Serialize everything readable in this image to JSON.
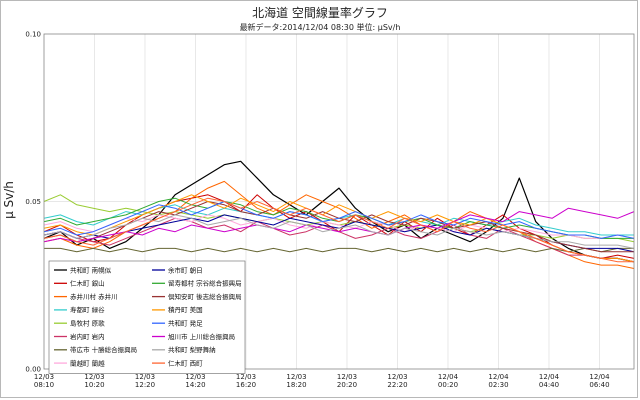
{
  "chart_data": {
    "type": "line",
    "title": "北海道 空間線量率グラフ",
    "subtitle": "最新データ:2014/12/04 08:30 単位: μSv/h",
    "ylabel": "μ Sv/h",
    "xlabel": "",
    "ylim": [
      0,
      0.1
    ],
    "y_ticks": [
      "0.00",
      "0.05",
      "0.10"
    ],
    "y_tick_values": [
      0,
      0.05,
      0.1
    ],
    "grid": true,
    "legend_position": "bottom-left",
    "x_ticks": [
      {
        "date": "12/03",
        "time": "08:10"
      },
      {
        "date": "12/03",
        "time": "10:20"
      },
      {
        "date": "12/03",
        "time": "12:20"
      },
      {
        "date": "12/03",
        "time": "14:20"
      },
      {
        "date": "12/03",
        "time": "16:20"
      },
      {
        "date": "12/03",
        "time": "18:20"
      },
      {
        "date": "12/03",
        "time": "20:20"
      },
      {
        "date": "12/03",
        "time": "22:20"
      },
      {
        "date": "12/04",
        "time": "00:20"
      },
      {
        "date": "12/04",
        "time": "02:30"
      },
      {
        "date": "12/04",
        "time": "04:40"
      },
      {
        "date": "12/04",
        "time": "06:40"
      }
    ],
    "series": [
      {
        "name": "共和町 南幌似",
        "color": "#000000",
        "values": [
          0.039,
          0.041,
          0.037,
          0.039,
          0.036,
          0.038,
          0.042,
          0.046,
          0.052,
          0.055,
          0.058,
          0.061,
          0.062,
          0.057,
          0.052,
          0.049,
          0.046,
          0.05,
          0.054,
          0.048,
          0.044,
          0.041,
          0.043,
          0.039,
          0.042,
          0.04,
          0.038,
          0.041,
          0.045,
          0.057,
          0.044,
          0.039,
          0.036,
          0.034,
          0.033,
          0.033,
          0.032
        ]
      },
      {
        "name": "仁木町 銀山",
        "color": "#cc0000",
        "values": [
          0.041,
          0.043,
          0.04,
          0.038,
          0.039,
          0.043,
          0.046,
          0.048,
          0.05,
          0.051,
          0.052,
          0.05,
          0.047,
          0.052,
          0.048,
          0.045,
          0.047,
          0.044,
          0.041,
          0.046,
          0.043,
          0.04,
          0.044,
          0.041,
          0.045,
          0.042,
          0.04,
          0.043,
          0.046,
          0.042,
          0.04,
          0.037,
          0.035,
          0.034,
          0.033,
          0.034,
          0.033
        ]
      },
      {
        "name": "赤井川村 赤井川",
        "color": "#ff6600",
        "values": [
          0.038,
          0.039,
          0.037,
          0.036,
          0.038,
          0.041,
          0.043,
          0.045,
          0.047,
          0.051,
          0.054,
          0.056,
          0.052,
          0.048,
          0.046,
          0.049,
          0.052,
          0.05,
          0.048,
          0.045,
          0.042,
          0.044,
          0.046,
          0.043,
          0.041,
          0.044,
          0.047,
          0.045,
          0.043,
          0.041,
          0.038,
          0.036,
          0.034,
          0.032,
          0.031,
          0.031,
          0.03
        ]
      },
      {
        "name": "寿都町 緑谷",
        "color": "#33cccc",
        "values": [
          0.045,
          0.046,
          0.044,
          0.043,
          0.045,
          0.047,
          0.046,
          0.048,
          0.049,
          0.047,
          0.046,
          0.048,
          0.047,
          0.046,
          0.045,
          0.047,
          0.046,
          0.044,
          0.045,
          0.046,
          0.044,
          0.043,
          0.045,
          0.044,
          0.043,
          0.045,
          0.044,
          0.043,
          0.044,
          0.045,
          0.043,
          0.042,
          0.041,
          0.041,
          0.04,
          0.04,
          0.04
        ]
      },
      {
        "name": "島牧村 原歌",
        "color": "#99cc33",
        "values": [
          0.05,
          0.052,
          0.049,
          0.048,
          0.047,
          0.048,
          0.047,
          0.046,
          0.047,
          0.046,
          0.045,
          0.046,
          0.045,
          0.044,
          0.045,
          0.044,
          0.043,
          0.044,
          0.043,
          0.044,
          0.043,
          0.042,
          0.043,
          0.042,
          0.043,
          0.042,
          0.041,
          0.042,
          0.041,
          0.04,
          0.04,
          0.039,
          0.04,
          0.039,
          0.039,
          0.039,
          0.038
        ]
      },
      {
        "name": "岩内町 岩内",
        "color": "#cc3366",
        "values": [
          0.04,
          0.041,
          0.039,
          0.038,
          0.037,
          0.039,
          0.041,
          0.043,
          0.045,
          0.044,
          0.042,
          0.043,
          0.041,
          0.044,
          0.042,
          0.04,
          0.041,
          0.043,
          0.041,
          0.039,
          0.04,
          0.042,
          0.04,
          0.039,
          0.041,
          0.043,
          0.04,
          0.039,
          0.042,
          0.04,
          0.038,
          0.036,
          0.034,
          0.034,
          0.033,
          0.033,
          0.032
        ]
      },
      {
        "name": "帯広市 十勝総合振興局",
        "color": "#666633",
        "values": [
          0.036,
          0.036,
          0.035,
          0.036,
          0.035,
          0.036,
          0.035,
          0.036,
          0.036,
          0.035,
          0.036,
          0.035,
          0.036,
          0.035,
          0.036,
          0.035,
          0.036,
          0.035,
          0.036,
          0.036,
          0.035,
          0.036,
          0.035,
          0.036,
          0.035,
          0.036,
          0.035,
          0.036,
          0.035,
          0.036,
          0.035,
          0.036,
          0.035,
          0.036,
          0.035,
          0.036,
          0.036
        ]
      },
      {
        "name": "蘭越町 蘭越",
        "color": "#ffaadd",
        "values": [
          0.043,
          0.044,
          0.042,
          0.041,
          0.043,
          0.045,
          0.044,
          0.046,
          0.045,
          0.044,
          0.046,
          0.045,
          0.043,
          0.044,
          0.045,
          0.043,
          0.042,
          0.044,
          0.043,
          0.042,
          0.044,
          0.043,
          0.041,
          0.043,
          0.042,
          0.041,
          0.043,
          0.042,
          0.041,
          0.042,
          0.041,
          0.04,
          0.04,
          0.039,
          0.039,
          0.04,
          0.039
        ]
      },
      {
        "name": "余市町 朝日",
        "color": "#000099",
        "values": [
          0.04,
          0.041,
          0.039,
          0.04,
          0.039,
          0.041,
          0.042,
          0.043,
          0.044,
          0.045,
          0.044,
          0.046,
          0.045,
          0.044,
          0.043,
          0.045,
          0.044,
          0.043,
          0.042,
          0.044,
          0.043,
          0.042,
          0.041,
          0.042,
          0.043,
          0.041,
          0.04,
          0.042,
          0.041,
          0.04,
          0.039,
          0.038,
          0.037,
          0.036,
          0.036,
          0.036,
          0.035
        ]
      },
      {
        "name": "留寿都村 宗谷総合振興局",
        "color": "#33aa33",
        "values": [
          0.044,
          0.045,
          0.043,
          0.044,
          0.045,
          0.046,
          0.048,
          0.05,
          0.051,
          0.049,
          0.048,
          0.05,
          0.049,
          0.047,
          0.046,
          0.048,
          0.047,
          0.045,
          0.044,
          0.046,
          0.045,
          0.043,
          0.044,
          0.045,
          0.043,
          0.042,
          0.044,
          0.043,
          0.042,
          0.043,
          0.042,
          0.041,
          0.04,
          0.04,
          0.039,
          0.039,
          0.039
        ]
      },
      {
        "name": "倶知安町 後志総合振興局",
        "color": "#993333",
        "values": [
          0.039,
          0.04,
          0.038,
          0.039,
          0.041,
          0.043,
          0.045,
          0.047,
          0.046,
          0.048,
          0.05,
          0.049,
          0.047,
          0.046,
          0.048,
          0.046,
          0.045,
          0.047,
          0.045,
          0.044,
          0.046,
          0.044,
          0.043,
          0.045,
          0.044,
          0.042,
          0.043,
          0.044,
          0.042,
          0.041,
          0.04,
          0.038,
          0.037,
          0.036,
          0.035,
          0.035,
          0.035
        ]
      },
      {
        "name": "積丹町 美国",
        "color": "#ff9900",
        "values": [
          0.042,
          0.043,
          0.041,
          0.04,
          0.042,
          0.044,
          0.046,
          0.048,
          0.05,
          0.052,
          0.05,
          0.048,
          0.051,
          0.049,
          0.047,
          0.05,
          0.048,
          0.046,
          0.049,
          0.047,
          0.045,
          0.047,
          0.045,
          0.044,
          0.046,
          0.044,
          0.043,
          0.045,
          0.043,
          0.041,
          0.039,
          0.037,
          0.035,
          0.034,
          0.033,
          0.033,
          0.032
        ]
      },
      {
        "name": "共和町 発足",
        "color": "#3366ff",
        "values": [
          0.041,
          0.042,
          0.04,
          0.041,
          0.043,
          0.045,
          0.047,
          0.049,
          0.048,
          0.046,
          0.048,
          0.05,
          0.048,
          0.046,
          0.045,
          0.047,
          0.046,
          0.044,
          0.045,
          0.047,
          0.045,
          0.043,
          0.044,
          0.046,
          0.044,
          0.043,
          0.045,
          0.044,
          0.043,
          0.044,
          0.042,
          0.041,
          0.04,
          0.04,
          0.039,
          0.04,
          0.039
        ]
      },
      {
        "name": "旭川市 上川総合振興局",
        "color": "#cc00cc",
        "values": [
          0.038,
          0.039,
          0.038,
          0.039,
          0.04,
          0.041,
          0.04,
          0.042,
          0.041,
          0.043,
          0.042,
          0.041,
          0.042,
          0.043,
          0.042,
          0.041,
          0.043,
          0.042,
          0.041,
          0.042,
          0.041,
          0.04,
          0.042,
          0.043,
          0.042,
          0.044,
          0.046,
          0.045,
          0.044,
          0.047,
          0.046,
          0.045,
          0.048,
          0.047,
          0.046,
          0.045,
          0.047
        ]
      },
      {
        "name": "共和町 梨野舞納",
        "color": "#aaaaaa",
        "values": [
          0.04,
          0.041,
          0.039,
          0.04,
          0.042,
          0.043,
          0.045,
          0.044,
          0.046,
          0.045,
          0.043,
          0.044,
          0.045,
          0.043,
          0.042,
          0.044,
          0.043,
          0.041,
          0.042,
          0.043,
          0.041,
          0.04,
          0.042,
          0.041,
          0.04,
          0.042,
          0.041,
          0.04,
          0.041,
          0.04,
          0.039,
          0.038,
          0.038,
          0.037,
          0.037,
          0.037,
          0.036
        ]
      },
      {
        "name": "仁木町 西町",
        "color": "#ff6633",
        "values": [
          0.039,
          0.04,
          0.038,
          0.037,
          0.039,
          0.041,
          0.043,
          0.045,
          0.047,
          0.049,
          0.051,
          0.05,
          0.048,
          0.05,
          0.048,
          0.046,
          0.048,
          0.046,
          0.044,
          0.046,
          0.044,
          0.042,
          0.045,
          0.043,
          0.041,
          0.044,
          0.042,
          0.041,
          0.043,
          0.041,
          0.039,
          0.037,
          0.035,
          0.034,
          0.033,
          0.032,
          0.032
        ]
      }
    ]
  }
}
